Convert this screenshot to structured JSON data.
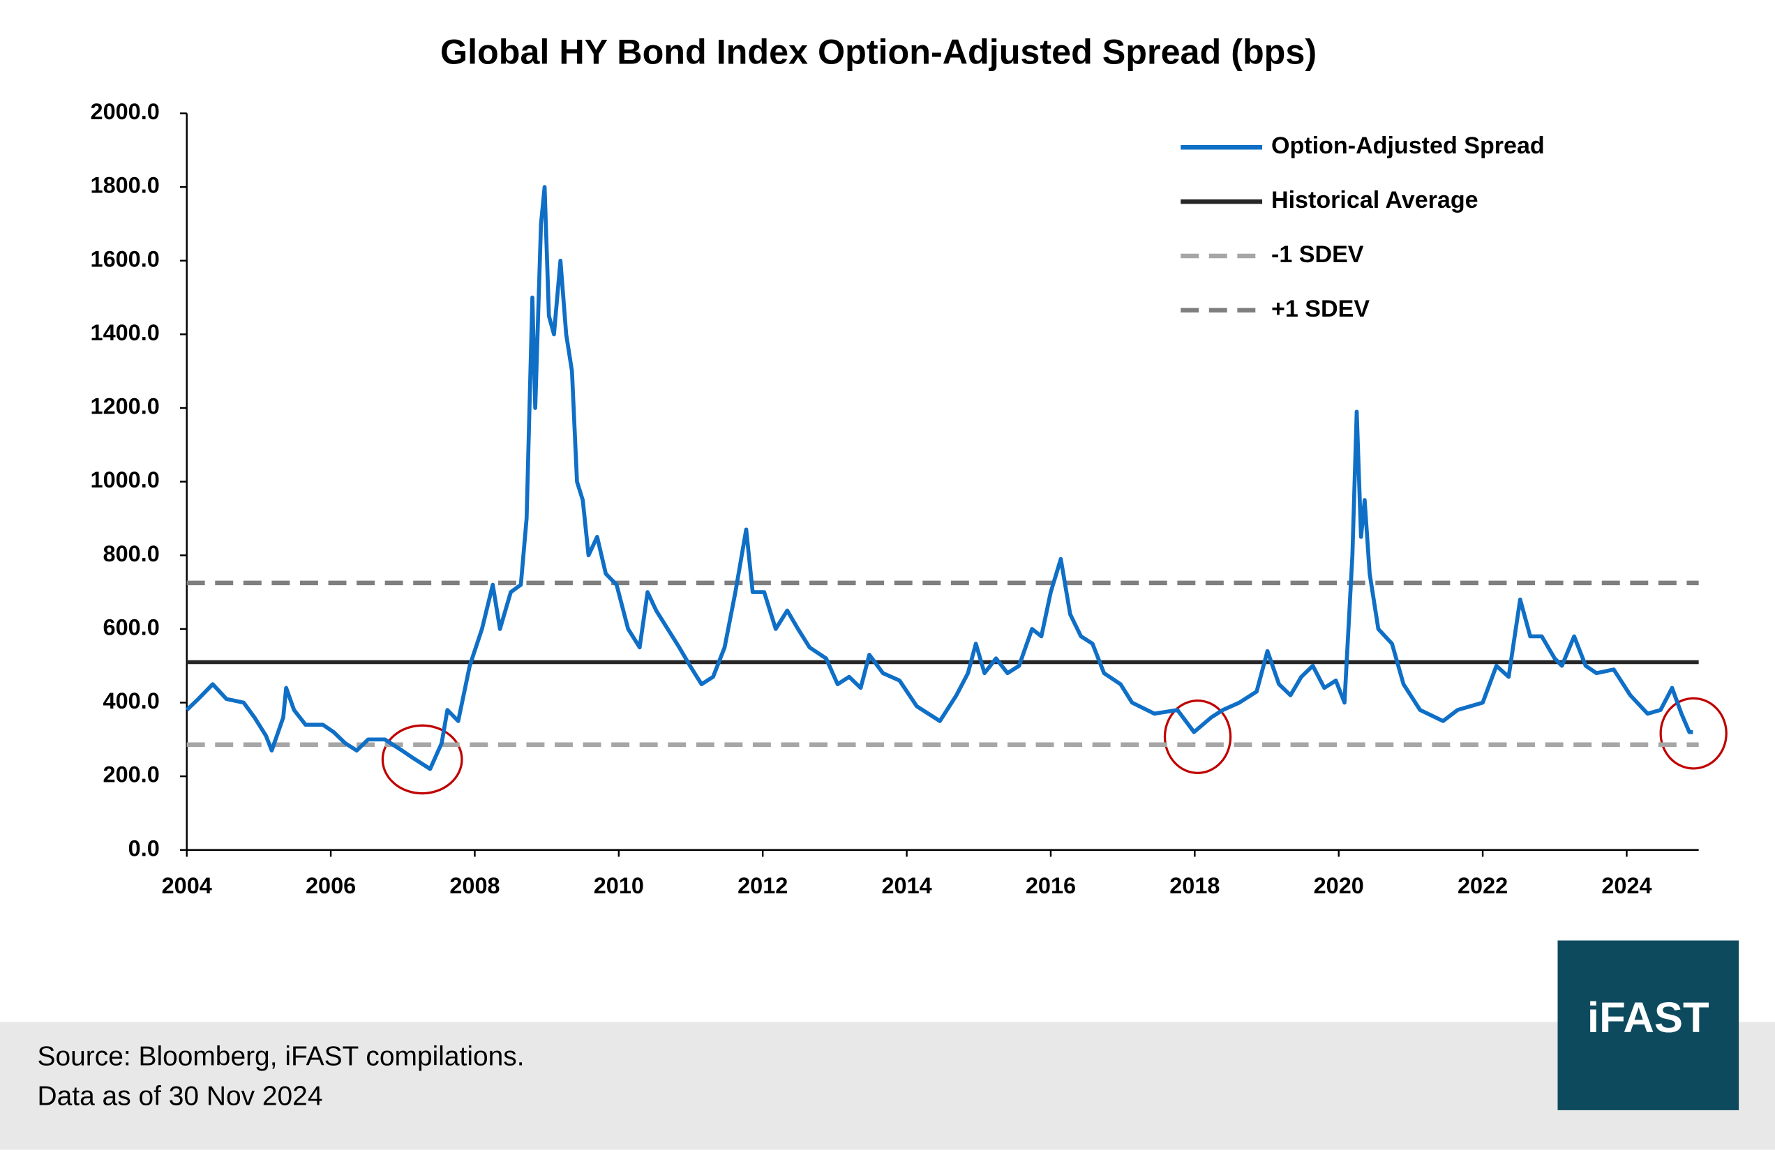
{
  "chart_data": {
    "type": "line",
    "title": "Global HY Bond Index Option-Adjusted Spread (bps)",
    "xlim": [
      2004,
      2025
    ],
    "xticks": [
      2004,
      2006,
      2008,
      2010,
      2012,
      2014,
      2016,
      2018,
      2020,
      2022,
      2024
    ],
    "ylim": [
      0,
      2000
    ],
    "yticks": [
      {
        "value": 0,
        "label": "0.0"
      },
      {
        "value": 200,
        "label": "200.0"
      },
      {
        "value": 400,
        "label": "400.0"
      },
      {
        "value": 600,
        "label": "600.0"
      },
      {
        "value": 800,
        "label": "800.0"
      },
      {
        "value": 1000,
        "label": "1000.0"
      },
      {
        "value": 1200,
        "label": "1200.0"
      },
      {
        "value": 1400,
        "label": "1400.0"
      },
      {
        "value": 1600,
        "label": "1600.0"
      },
      {
        "value": 1800,
        "label": "1800.0"
      },
      {
        "value": 2000,
        "label": "2000.0"
      }
    ],
    "grid": false,
    "legend": "top-right",
    "series": [
      {
        "name": "Option-Adjusted Spread",
        "color": "#0f6fc6",
        "x": [
          2004.0,
          2004.16,
          2004.36,
          2004.55,
          2004.79,
          2004.94,
          2005.1,
          2005.18,
          2005.34,
          2005.38,
          2005.49,
          2005.65,
          2005.89,
          2006.04,
          2006.2,
          2006.36,
          2006.52,
          2006.75,
          2006.99,
          2007.14,
          2007.38,
          2007.54,
          2007.62,
          2007.77,
          2007.93,
          2008.1,
          2008.25,
          2008.35,
          2008.5,
          2008.64,
          2008.72,
          2008.8,
          2008.84,
          2008.92,
          2008.97,
          2009.03,
          2009.1,
          2009.19,
          2009.27,
          2009.35,
          2009.42,
          2009.5,
          2009.58,
          2009.7,
          2009.82,
          2009.97,
          2010.13,
          2010.29,
          2010.4,
          2010.52,
          2010.68,
          2010.84,
          2010.99,
          2011.15,
          2011.31,
          2011.47,
          2011.62,
          2011.77,
          2011.86,
          2012.02,
          2012.18,
          2012.34,
          2012.49,
          2012.65,
          2012.88,
          2013.04,
          2013.2,
          2013.36,
          2013.48,
          2013.67,
          2013.9,
          2014.14,
          2014.46,
          2014.69,
          2014.85,
          2014.96,
          2015.08,
          2015.24,
          2015.4,
          2015.56,
          2015.74,
          2015.87,
          2016.0,
          2016.14,
          2016.27,
          2016.42,
          2016.58,
          2016.74,
          2016.97,
          2017.13,
          2017.44,
          2017.76,
          2017.99,
          2018.23,
          2018.39,
          2018.62,
          2018.86,
          2019.01,
          2019.17,
          2019.33,
          2019.48,
          2019.64,
          2019.8,
          2019.96,
          2020.08,
          2020.19,
          2020.25,
          2020.31,
          2020.36,
          2020.43,
          2020.55,
          2020.74,
          2020.9,
          2021.13,
          2021.45,
          2021.65,
          2022.0,
          2022.19,
          2022.36,
          2022.52,
          2022.66,
          2022.82,
          2023.0,
          2023.1,
          2023.27,
          2023.43,
          2023.58,
          2023.82,
          2024.05,
          2024.29,
          2024.47,
          2024.63,
          2024.76,
          2024.87,
          2024.92
        ],
        "values": [
          380,
          410,
          450,
          410,
          400,
          360,
          310,
          270,
          360,
          440,
          380,
          340,
          340,
          320,
          290,
          270,
          300,
          300,
          270,
          250,
          220,
          290,
          380,
          350,
          500,
          600,
          720,
          600,
          700,
          720,
          900,
          1500,
          1200,
          1700,
          1800,
          1450,
          1400,
          1600,
          1400,
          1300,
          1000,
          950,
          800,
          850,
          750,
          720,
          600,
          550,
          700,
          650,
          600,
          550,
          500,
          450,
          470,
          550,
          700,
          870,
          700,
          700,
          600,
          650,
          600,
          550,
          520,
          450,
          470,
          440,
          530,
          480,
          460,
          390,
          350,
          420,
          480,
          560,
          480,
          520,
          480,
          500,
          600,
          580,
          700,
          790,
          640,
          580,
          560,
          480,
          450,
          400,
          370,
          380,
          320,
          360,
          380,
          400,
          430,
          540,
          450,
          420,
          470,
          500,
          440,
          460,
          400,
          800,
          1190,
          850,
          950,
          750,
          600,
          560,
          450,
          380,
          350,
          380,
          400,
          500,
          470,
          680,
          580,
          580,
          520,
          500,
          580,
          500,
          480,
          490,
          420,
          370,
          380,
          440,
          370,
          320,
          320
        ]
      }
    ],
    "reference_lines": [
      {
        "name": "Historical Average",
        "value": 510,
        "color": "#262626",
        "dash": false
      },
      {
        "name": "-1 SDEV",
        "value": 286,
        "color": "#a6a6a6",
        "dash": true
      },
      {
        "name": "+1 SDEV",
        "value": 725,
        "color": "#7f7f7f",
        "dash": true
      }
    ]
  },
  "footer": {
    "source": "Source: Bloomberg, iFAST compilations.",
    "date": "Data as of 30 Nov 2024",
    "logo": "iFAST"
  }
}
